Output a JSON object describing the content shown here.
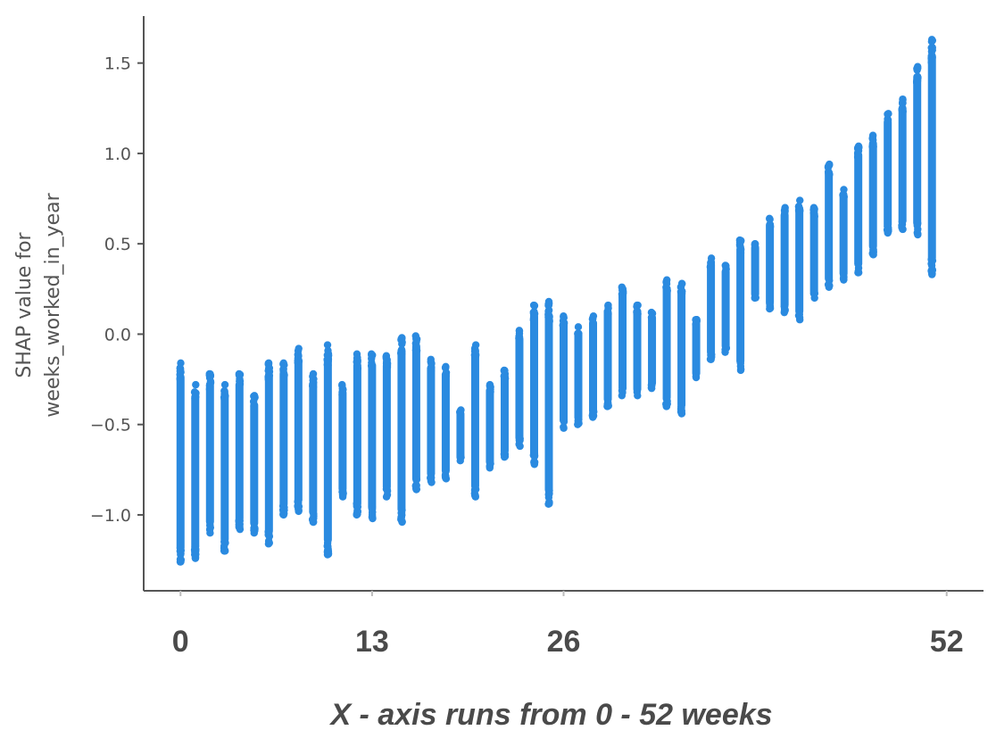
{
  "chart_data": {
    "type": "scatter",
    "ylabel_lines": [
      "SHAP value for",
      "weeks_worked_in_year"
    ],
    "x_tick_labels": [
      "0",
      "13",
      "26",
      "52"
    ],
    "x_tick_values": [
      0,
      13,
      26,
      52
    ],
    "y_tick_labels": [
      "1.5",
      "1.0",
      "0.5",
      "0.0",
      "−0.5",
      "−1.0"
    ],
    "y_tick_values": [
      1.5,
      1.0,
      0.5,
      0.0,
      -0.5,
      -1.0
    ],
    "xlim": [
      -2.5,
      54.5
    ],
    "ylim": [
      -1.42,
      1.76
    ],
    "caption": "X  - axis runs from 0 - 52 weeks",
    "grid": false,
    "color": "#2a8ae0",
    "columns": [
      {
        "x": 0,
        "ymin": -1.26,
        "ymax": -0.16
      },
      {
        "x": 1,
        "ymin": -1.24,
        "ymax": -0.28
      },
      {
        "x": 2,
        "ymin": -1.1,
        "ymax": -0.22
      },
      {
        "x": 3,
        "ymin": -1.2,
        "ymax": -0.28
      },
      {
        "x": 4,
        "ymin": -1.08,
        "ymax": -0.22
      },
      {
        "x": 5,
        "ymin": -1.1,
        "ymax": -0.34
      },
      {
        "x": 6,
        "ymin": -1.16,
        "ymax": -0.16
      },
      {
        "x": 7,
        "ymin": -1.0,
        "ymax": -0.16
      },
      {
        "x": 8,
        "ymin": -0.98,
        "ymax": -0.08
      },
      {
        "x": 9,
        "ymin": -1.04,
        "ymax": -0.22
      },
      {
        "x": 10,
        "ymin": -1.22,
        "ymax": -0.06
      },
      {
        "x": 11,
        "ymin": -0.9,
        "ymax": -0.28
      },
      {
        "x": 12,
        "ymin": -1.0,
        "ymax": -0.11
      },
      {
        "x": 13,
        "ymin": -1.02,
        "ymax": -0.11
      },
      {
        "x": 14,
        "ymin": -0.9,
        "ymax": -0.12
      },
      {
        "x": 15,
        "ymin": -1.04,
        "ymax": -0.02
      },
      {
        "x": 16,
        "ymin": -0.86,
        "ymax": -0.01
      },
      {
        "x": 17,
        "ymin": -0.82,
        "ymax": -0.14
      },
      {
        "x": 18,
        "ymin": -0.8,
        "ymax": -0.18
      },
      {
        "x": 19,
        "ymin": -0.7,
        "ymax": -0.42
      },
      {
        "x": 20,
        "ymin": -0.9,
        "ymax": -0.06
      },
      {
        "x": 21,
        "ymin": -0.74,
        "ymax": -0.28
      },
      {
        "x": 22,
        "ymin": -0.68,
        "ymax": -0.2
      },
      {
        "x": 23,
        "ymin": -0.62,
        "ymax": 0.02
      },
      {
        "x": 24,
        "ymin": -0.72,
        "ymax": 0.16
      },
      {
        "x": 25,
        "ymin": -0.94,
        "ymax": 0.18
      },
      {
        "x": 26,
        "ymin": -0.52,
        "ymax": 0.1
      },
      {
        "x": 27,
        "ymin": -0.5,
        "ymax": 0.04
      },
      {
        "x": 28,
        "ymin": -0.46,
        "ymax": 0.1
      },
      {
        "x": 29,
        "ymin": -0.4,
        "ymax": 0.16
      },
      {
        "x": 30,
        "ymin": -0.34,
        "ymax": 0.26
      },
      {
        "x": 31,
        "ymin": -0.34,
        "ymax": 0.16
      },
      {
        "x": 32,
        "ymin": -0.3,
        "ymax": 0.12
      },
      {
        "x": 33,
        "ymin": -0.4,
        "ymax": 0.3
      },
      {
        "x": 34,
        "ymin": -0.44,
        "ymax": 0.28
      },
      {
        "x": 35,
        "ymin": -0.24,
        "ymax": 0.08
      },
      {
        "x": 36,
        "ymin": -0.14,
        "ymax": 0.42
      },
      {
        "x": 37,
        "ymin": -0.1,
        "ymax": 0.38
      },
      {
        "x": 38,
        "ymin": -0.2,
        "ymax": 0.52
      },
      {
        "x": 39,
        "ymin": 0.2,
        "ymax": 0.5
      },
      {
        "x": 40,
        "ymin": 0.14,
        "ymax": 0.64
      },
      {
        "x": 41,
        "ymin": 0.12,
        "ymax": 0.7
      },
      {
        "x": 42,
        "ymin": 0.08,
        "ymax": 0.74
      },
      {
        "x": 43,
        "ymin": 0.2,
        "ymax": 0.7
      },
      {
        "x": 44,
        "ymin": 0.26,
        "ymax": 0.94
      },
      {
        "x": 45,
        "ymin": 0.3,
        "ymax": 0.8
      },
      {
        "x": 46,
        "ymin": 0.34,
        "ymax": 1.04
      },
      {
        "x": 47,
        "ymin": 0.44,
        "ymax": 1.1
      },
      {
        "x": 48,
        "ymin": 0.56,
        "ymax": 1.22
      },
      {
        "x": 49,
        "ymin": 0.58,
        "ymax": 1.3
      },
      {
        "x": 50,
        "ymin": 0.55,
        "ymax": 1.48
      },
      {
        "x": 51,
        "ymin": 0.33,
        "ymax": 1.63
      }
    ]
  }
}
